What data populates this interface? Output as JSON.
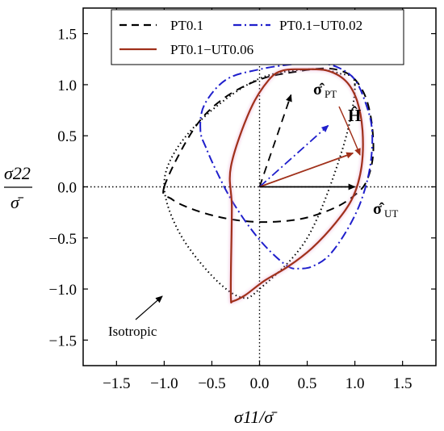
{
  "chart_data": {
    "type": "line",
    "xlabel": "σ11/σ̄",
    "ylabel_num": "σ22",
    "ylabel_den": "σ̄",
    "xlim": [
      -1.85,
      1.85
    ],
    "ylim": [
      -1.75,
      1.75
    ],
    "xticks": [
      -1.5,
      -1.0,
      -0.5,
      0.0,
      0.5,
      1.0,
      1.5
    ],
    "yticks": [
      -1.5,
      -1.0,
      -0.5,
      0.0,
      0.5,
      1.0,
      1.5
    ],
    "xtick_labels": [
      "−1.5",
      "−1.0",
      "−0.5",
      "0.0",
      "0.5",
      "1.0",
      "1.5"
    ],
    "ytick_labels": [
      "−1.5",
      "−1.0",
      "−0.5",
      "0.0",
      "0.5",
      "1.0",
      "1.5"
    ],
    "legend": {
      "placement": "top",
      "entries": [
        "PT0.1",
        "PT0.1−UT0.02",
        "PT0.1−UT0.06"
      ]
    },
    "series": [
      {
        "name": "PT0.1",
        "color": "#000000",
        "style": "dashed",
        "x": [
          -1.0,
          -0.7,
          -0.4,
          0.0,
          0.4,
          0.7,
          0.9,
          1.02,
          1.12,
          1.18,
          1.19,
          1.12,
          1.0,
          0.8,
          0.5,
          0.2,
          -0.1,
          -0.4,
          -0.7,
          -0.92,
          -1.0
        ],
        "y": [
          0.0,
          0.55,
          0.85,
          1.05,
          1.13,
          1.16,
          1.12,
          1.03,
          0.86,
          0.6,
          0.3,
          0.05,
          -0.08,
          -0.2,
          -0.3,
          -0.34,
          -0.34,
          -0.3,
          -0.22,
          -0.12,
          0.0
        ]
      },
      {
        "name": "PT0.1−UT0.02",
        "color": "#1f1fcc",
        "style": "dashdot",
        "x": [
          -0.62,
          -0.58,
          -0.35,
          0.0,
          0.35,
          0.62,
          0.82,
          1.0,
          1.12,
          1.18,
          1.16,
          1.06,
          0.9,
          0.72,
          0.55,
          0.42,
          0.3,
          0.1,
          -0.1,
          -0.3,
          -0.45,
          -0.56,
          -0.62
        ],
        "y": [
          0.55,
          0.8,
          1.05,
          1.15,
          1.2,
          1.21,
          1.17,
          1.05,
          0.8,
          0.55,
          0.2,
          -0.15,
          -0.45,
          -0.68,
          -0.78,
          -0.8,
          -0.78,
          -0.62,
          -0.4,
          -0.12,
          0.15,
          0.38,
          0.55
        ]
      },
      {
        "name": "PT0.1−UT0.06",
        "color": "#a0301a",
        "style": "solid",
        "x": [
          -0.3,
          -0.1,
          0.1,
          0.25,
          0.45,
          0.7,
          0.9,
          1.02,
          1.08,
          1.07,
          0.98,
          0.8,
          0.55,
          0.3,
          0.05,
          -0.15,
          -0.28,
          -0.3,
          -0.3,
          -0.29,
          -0.3
        ],
        "y": [
          0.2,
          0.75,
          1.05,
          1.14,
          1.15,
          1.14,
          1.04,
          0.85,
          0.55,
          0.2,
          -0.1,
          -0.35,
          -0.6,
          -0.78,
          -0.92,
          -1.06,
          -1.12,
          -1.1,
          -0.8,
          -0.2,
          0.2
        ]
      },
      {
        "name": "Isotropic",
        "color": "#000000",
        "style": "dotted",
        "x": [
          1.0,
          0.84,
          0.5,
          0.0,
          -0.5,
          -0.87,
          -1.0,
          -0.84,
          -0.5,
          -0.2,
          0.0,
          0.5,
          0.87,
          1.0
        ],
        "y": [
          1.0,
          1.11,
          1.15,
          1.06,
          0.75,
          0.37,
          0.0,
          -0.45,
          -0.87,
          -1.08,
          -1.0,
          -0.5,
          0.37,
          1.0
        ]
      }
    ],
    "vectors": [
      {
        "name": "sigma-hat-PT",
        "color": "#000000",
        "style": "dashed",
        "x": 0.33,
        "y": 0.9
      },
      {
        "name": "mid",
        "color": "#1f1fcc",
        "style": "dashdot",
        "x": 0.72,
        "y": 0.6
      },
      {
        "name": "H-vector",
        "color": "#a0301a",
        "style": "solid",
        "x": 0.98,
        "y": 0.33
      },
      {
        "name": "sigma-hat-UT",
        "color": "#000000",
        "style": "solid",
        "x": 1.0,
        "y": 0.0
      }
    ],
    "annotations": {
      "sigma_pt_main": "σ̂",
      "sigma_pt_sub": "PT",
      "sigma_ut_main": "σ̂",
      "sigma_ut_sub": "UT",
      "h_label": "Ĥ",
      "isotropic": "Isotropic"
    }
  }
}
